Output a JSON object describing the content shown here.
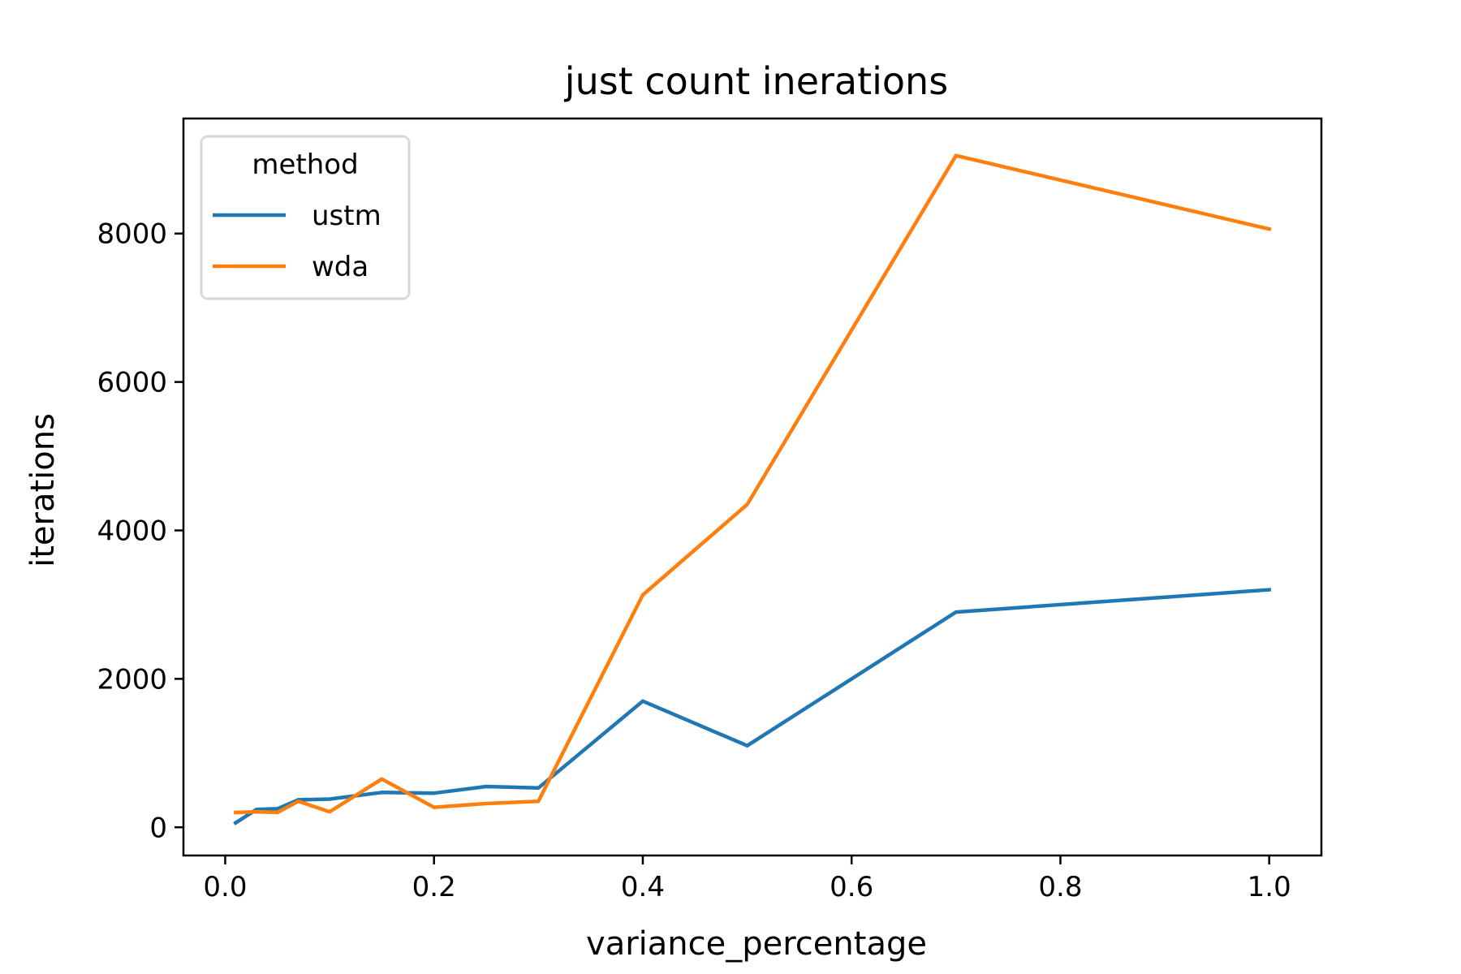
{
  "chart_data": {
    "type": "line",
    "title": "just count inerations",
    "xlabel": "variance_percentage",
    "ylabel": "iterations",
    "xlim": [
      -0.04,
      1.05
    ],
    "ylim": [
      -380,
      9550
    ],
    "xticks": [
      0.0,
      0.2,
      0.4,
      0.6,
      0.8,
      1.0
    ],
    "xtick_labels": [
      "0.0",
      "0.2",
      "0.4",
      "0.6",
      "0.8",
      "1.0"
    ],
    "yticks": [
      0,
      2000,
      4000,
      6000,
      8000
    ],
    "ytick_labels": [
      "0",
      "2000",
      "4000",
      "6000",
      "8000"
    ],
    "grid": false,
    "legend": {
      "title": "method",
      "placement": "top-left"
    },
    "series": [
      {
        "name": "ustm",
        "color": "#1f77b4",
        "x": [
          0.01,
          0.03,
          0.05,
          0.07,
          0.1,
          0.15,
          0.2,
          0.25,
          0.3,
          0.4,
          0.5,
          0.7,
          1.0
        ],
        "y": [
          60,
          240,
          250,
          370,
          380,
          470,
          460,
          550,
          530,
          1700,
          1100,
          2900,
          3200
        ]
      },
      {
        "name": "wda",
        "color": "#ff7f0e",
        "x": [
          0.01,
          0.03,
          0.05,
          0.07,
          0.1,
          0.15,
          0.2,
          0.25,
          0.3,
          0.4,
          0.5,
          0.7,
          1.0
        ],
        "y": [
          200,
          210,
          200,
          350,
          210,
          650,
          270,
          320,
          350,
          3130,
          4350,
          9050,
          8060
        ]
      }
    ]
  }
}
